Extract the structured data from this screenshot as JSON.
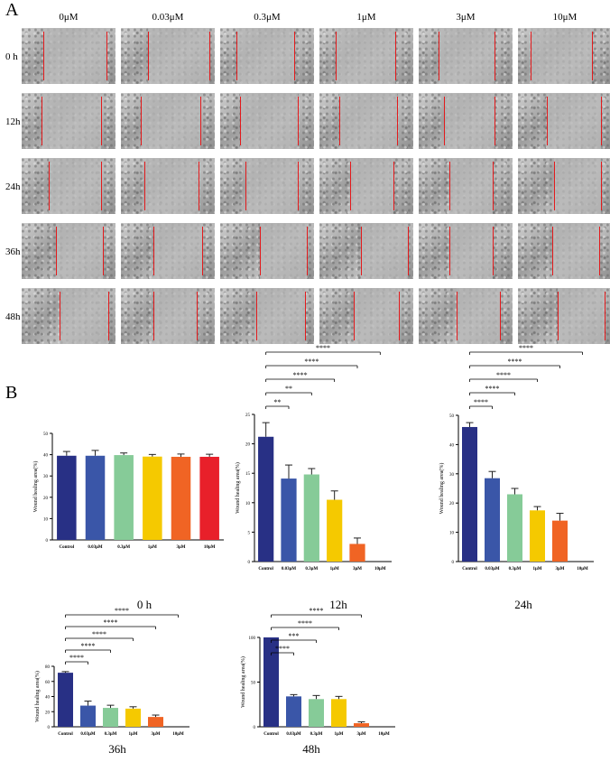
{
  "panel_a_label": "A",
  "panel_b_label": "B",
  "concentrations": [
    "0μM",
    "0.03μM",
    "0.3μM",
    "1μM",
    "3μM",
    "10μM"
  ],
  "timepoints": [
    "0 h",
    "12h",
    "24h",
    "36h",
    "48h"
  ],
  "chart_data": [
    {
      "type": "bar",
      "title": "0 h",
      "ylabel": "Wound healing area(%)",
      "categories": [
        "Control",
        "0.03μM",
        "0.3μM",
        "1μM",
        "3μM",
        "10μM"
      ],
      "values": [
        39.5,
        39.5,
        39.8,
        39.1,
        39.0,
        39.0
      ],
      "errors": [
        2.0,
        2.5,
        1.0,
        1.0,
        1.3,
        1.2
      ],
      "colors": [
        "#283085",
        "#3a56a8",
        "#86cb98",
        "#f5c900",
        "#f06424",
        "#e8202a"
      ],
      "ylim": [
        0,
        50
      ],
      "yticks": [
        "0",
        "10",
        "20",
        "30",
        "40",
        "50"
      ],
      "significance": []
    },
    {
      "type": "bar",
      "title": "12h",
      "ylabel": "Wound healing area(%)",
      "categories": [
        "Control",
        "0.03μM",
        "0.3μM",
        "1μM",
        "3μM",
        "10μM"
      ],
      "values": [
        21.2,
        14.1,
        14.8,
        10.5,
        3.0,
        0
      ],
      "errors": [
        2.4,
        2.3,
        1.0,
        1.5,
        1.0,
        0
      ],
      "colors": [
        "#283085",
        "#3a56a8",
        "#86cb98",
        "#f5c900",
        "#f06424",
        "#e8202a"
      ],
      "ylim": [
        0,
        25
      ],
      "yticks": [
        "0",
        "5",
        "10",
        "15",
        "20",
        "25"
      ],
      "significance": [
        {
          "from": 0,
          "to": 5,
          "label": "****"
        },
        {
          "from": 0,
          "to": 4,
          "label": "****"
        },
        {
          "from": 0,
          "to": 3,
          "label": "****"
        },
        {
          "from": 0,
          "to": 2,
          "label": "**"
        },
        {
          "from": 0,
          "to": 1,
          "label": "**"
        }
      ]
    },
    {
      "type": "bar",
      "title": "24h",
      "ylabel": "Wound healing area(%)",
      "categories": [
        "Control",
        "0.03μM",
        "0.3μM",
        "1μM",
        "3μM",
        "10μM"
      ],
      "values": [
        46,
        28.5,
        23,
        17.5,
        14,
        0
      ],
      "errors": [
        1.5,
        2.3,
        2.0,
        1.3,
        2.5,
        0
      ],
      "colors": [
        "#283085",
        "#3a56a8",
        "#86cb98",
        "#f5c900",
        "#f06424",
        "#e8202a"
      ],
      "ylim": [
        0,
        50
      ],
      "yticks": [
        "0",
        "10",
        "20",
        "30",
        "40",
        "50"
      ],
      "significance": [
        {
          "from": 0,
          "to": 5,
          "label": "****"
        },
        {
          "from": 0,
          "to": 4,
          "label": "****"
        },
        {
          "from": 0,
          "to": 3,
          "label": "****"
        },
        {
          "from": 0,
          "to": 2,
          "label": "****"
        },
        {
          "from": 0,
          "to": 1,
          "label": "****"
        }
      ]
    },
    {
      "type": "bar",
      "title": "36h",
      "ylabel": "Wound healing area(%)",
      "categories": [
        "Control",
        "0.03μM",
        "0.3μM",
        "1μM",
        "3μM",
        "10μM"
      ],
      "values": [
        71.5,
        28,
        25,
        24,
        13,
        0
      ],
      "errors": [
        1.5,
        6.0,
        3.5,
        2.5,
        2.5,
        0
      ],
      "colors": [
        "#283085",
        "#3a56a8",
        "#86cb98",
        "#f5c900",
        "#f06424",
        "#e8202a"
      ],
      "ylim": [
        0,
        80
      ],
      "yticks": [
        "0",
        "20",
        "40",
        "60",
        "80"
      ],
      "significance": [
        {
          "from": 0,
          "to": 5,
          "label": "****"
        },
        {
          "from": 0,
          "to": 4,
          "label": "****"
        },
        {
          "from": 0,
          "to": 3,
          "label": "****"
        },
        {
          "from": 0,
          "to": 2,
          "label": "****"
        },
        {
          "from": 0,
          "to": 1,
          "label": "****"
        }
      ]
    },
    {
      "type": "bar",
      "title": "48h",
      "ylabel": "Wound healing area(%)",
      "categories": [
        "Control",
        "0.03μM",
        "0.3μM",
        "1μM",
        "3μM",
        "10μM"
      ],
      "values": [
        100,
        34,
        31,
        31,
        4,
        0
      ],
      "errors": [
        0,
        2.0,
        4.0,
        3.0,
        1.5,
        0
      ],
      "colors": [
        "#283085",
        "#3a56a8",
        "#86cb98",
        "#f5c900",
        "#f06424",
        "#e8202a"
      ],
      "ylim": [
        0,
        100
      ],
      "yticks": [
        "0",
        "50",
        "100"
      ],
      "significance": [
        {
          "from": 0,
          "to": 4,
          "label": "****"
        },
        {
          "from": 0,
          "to": 3,
          "label": "****"
        },
        {
          "from": 0,
          "to": 2,
          "label": "***"
        },
        {
          "from": 0,
          "to": 1,
          "label": "****"
        }
      ]
    }
  ]
}
